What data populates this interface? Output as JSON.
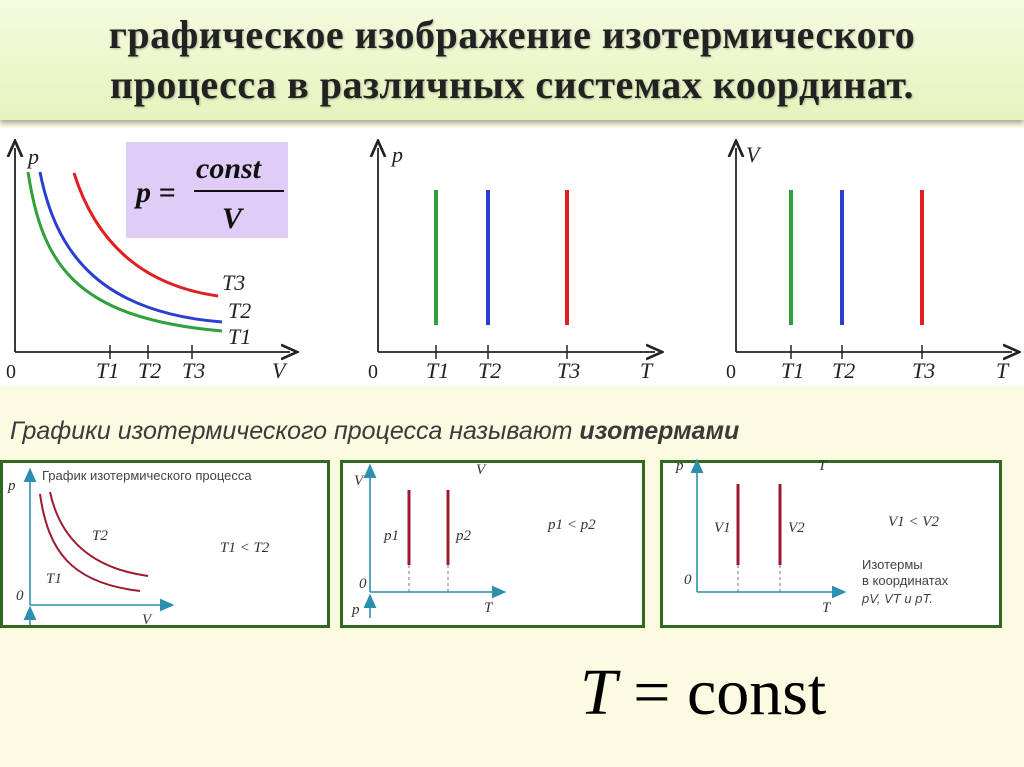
{
  "title": {
    "line1": "графическое изображение изотермического",
    "line2": "процесса в различных системах координат."
  },
  "formula_box": {
    "lhs": "p =",
    "numerator": "const",
    "denominator": "V"
  },
  "graph1": {
    "y_label": "p",
    "x_label": "V",
    "origin": "0",
    "curve_labels": [
      "T3",
      "T2",
      "T1"
    ],
    "axis_ticks": [
      "T1",
      "T2",
      "T3"
    ]
  },
  "graph2": {
    "y_label": "p",
    "x_label": "T",
    "origin": "0",
    "ticks": [
      "T1",
      "T2",
      "T3"
    ]
  },
  "graph3": {
    "y_label": "V",
    "x_label": "T",
    "origin": "0",
    "ticks": [
      "T1",
      "T2",
      "T3"
    ]
  },
  "caption": {
    "normal": "Графики изотермического процесса называют ",
    "bold": "изотермами"
  },
  "panel1": {
    "title": "График изотермического процесса",
    "y_label": "p",
    "x_label": "V",
    "origin": "0",
    "curve_labels": [
      "T2",
      "T1"
    ],
    "relation": "T1  <  T2"
  },
  "panel2": {
    "y_label": "V",
    "x_label": "T",
    "top_label": "V",
    "origin": "0",
    "bottom_label": "p",
    "line_labels": [
      "p1",
      "p2"
    ],
    "relation": "p1  <  p2"
  },
  "panel3": {
    "y_label": "p",
    "x_label": "T",
    "top_label": "T",
    "origin": "0",
    "line_labels": [
      "V1",
      "V2"
    ],
    "relation": "V1  <  V2",
    "note": [
      "Изотермы",
      "в координатах",
      "pV, VT и pT."
    ]
  },
  "big_formula": {
    "lhs": "T",
    "eq": " = ",
    "rhs": "const"
  },
  "colors": {
    "T1": "#2fa03a",
    "T2": "#2a3fd0",
    "T3": "#e02020",
    "isotherm_dark": "#a01830"
  }
}
